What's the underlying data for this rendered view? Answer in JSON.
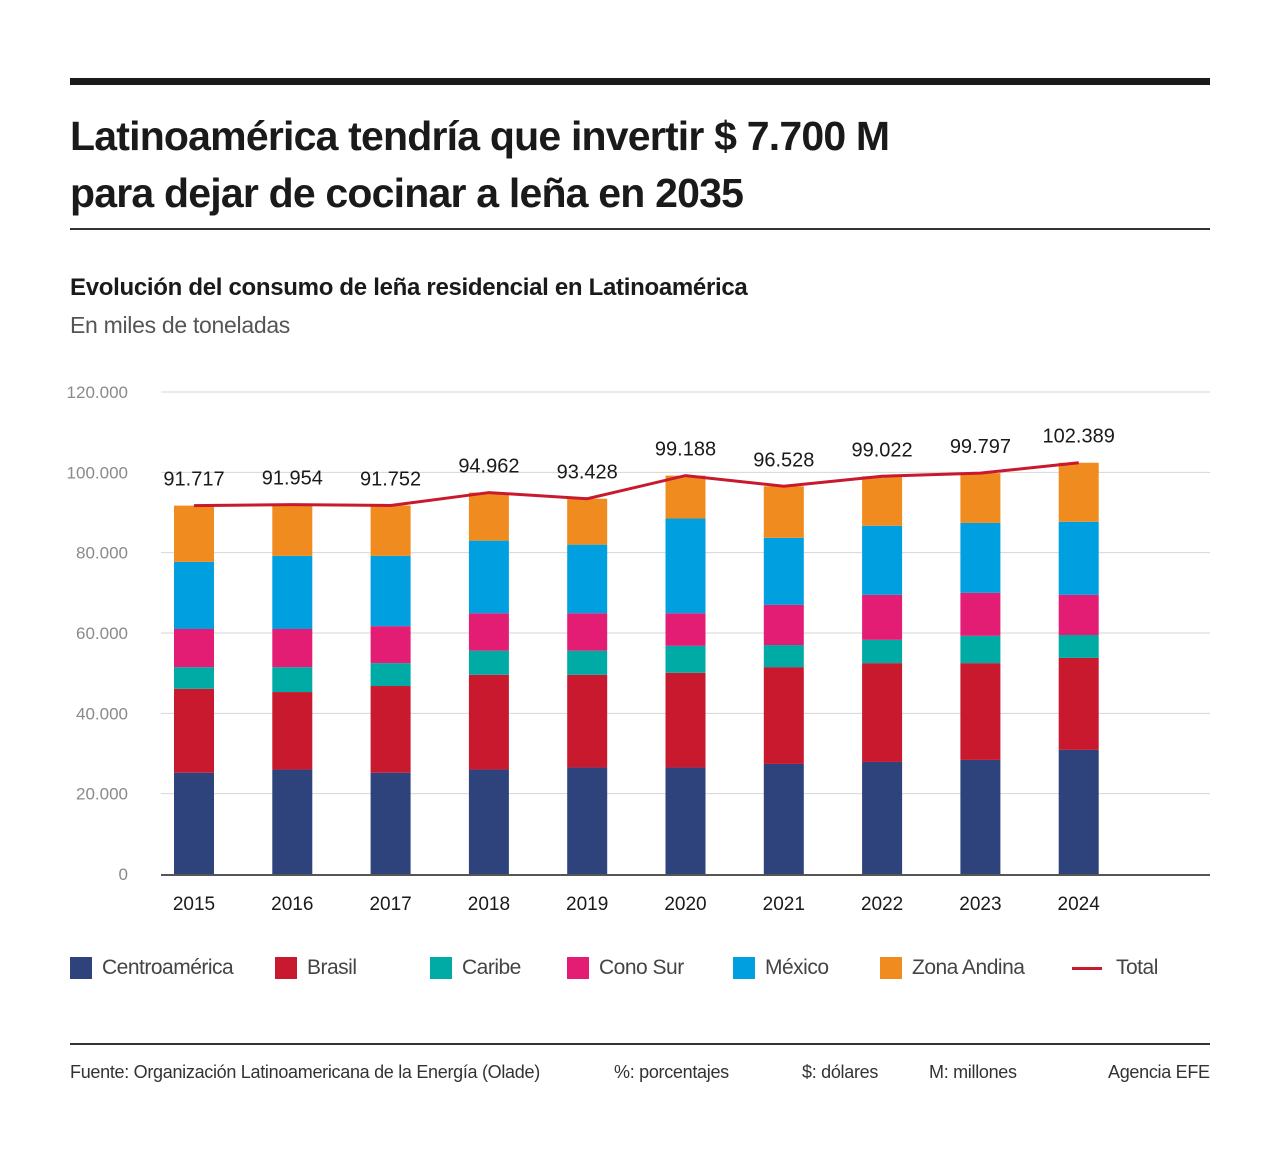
{
  "header": {
    "title_line1": "Latinoamérica tendría que invertir $ 7.700 M",
    "title_line2": "para dejar de cocinar a leña en 2035",
    "subtitle": "Evolución del consumo de leña residencial en Latinoamérica",
    "unit": "En miles de toneladas"
  },
  "chart_data": {
    "type": "bar",
    "stacked": true,
    "title": "Evolución del consumo de leña residencial en Latinoamérica",
    "subtitle": "En miles de toneladas",
    "xlabel": "",
    "ylabel": "",
    "ylim": [
      0,
      120000
    ],
    "yticks": [
      0,
      20000,
      40000,
      60000,
      80000,
      100000,
      120000
    ],
    "ytick_labels": [
      "0",
      "20.000",
      "40.000",
      "60.000",
      "80.000",
      "100.000",
      "120.000"
    ],
    "grid": true,
    "legend_position": "bottom",
    "categories": [
      "2015",
      "2016",
      "2017",
      "2018",
      "2019",
      "2020",
      "2021",
      "2022",
      "2023",
      "2024"
    ],
    "series": [
      {
        "name": "Centroamérica",
        "color": "#2e427b",
        "values": [
          25200,
          26000,
          25200,
          26000,
          26500,
          26500,
          27400,
          27900,
          28400,
          30900
        ]
      },
      {
        "name": "Brasil",
        "color": "#c8192f",
        "values": [
          20900,
          19300,
          21600,
          23600,
          23100,
          23600,
          24100,
          24600,
          24100,
          22900
        ]
      },
      {
        "name": "Caribe",
        "color": "#00aba5",
        "values": [
          5400,
          6200,
          5700,
          6000,
          6000,
          6700,
          5500,
          5800,
          6800,
          5700
        ]
      },
      {
        "name": "Cono Sur",
        "color": "#e41d74",
        "values": [
          9500,
          9500,
          9200,
          9300,
          9300,
          8100,
          10000,
          11200,
          10700,
          10000
        ]
      },
      {
        "name": "México",
        "color": "#009fe0",
        "values": [
          16700,
          18200,
          17500,
          18100,
          17100,
          23600,
          16700,
          17200,
          17400,
          18200
        ]
      },
      {
        "name": "Zona Andina",
        "color": "#f08c1f",
        "values": [
          14017,
          12754,
          12552,
          11962,
          11428,
          10688,
          12828,
          12322,
          12397,
          14689
        ]
      }
    ],
    "line": {
      "name": "Total",
      "color": "#c8192f",
      "values": [
        91717,
        91954,
        91752,
        94962,
        93428,
        99188,
        96528,
        99022,
        99797,
        102389
      ],
      "labels": [
        "91.717",
        "91.954",
        "91.752",
        "94.962",
        "93.428",
        "99.188",
        "96.528",
        "99.022",
        "99.797",
        "102.389"
      ]
    }
  },
  "legend": {
    "items": [
      {
        "label": "Centroamérica",
        "color": "#2e427b",
        "kind": "box"
      },
      {
        "label": "Brasil",
        "color": "#c8192f",
        "kind": "box"
      },
      {
        "label": "Caribe",
        "color": "#00aba5",
        "kind": "box"
      },
      {
        "label": "Cono Sur",
        "color": "#e41d74",
        "kind": "box"
      },
      {
        "label": "México",
        "color": "#009fe0",
        "kind": "box"
      },
      {
        "label": "Zona Andina",
        "color": "#f08c1f",
        "kind": "box"
      },
      {
        "label": "Total",
        "color": "#c8192f",
        "kind": "line"
      }
    ]
  },
  "footer": {
    "source": "Fuente: Organización Latinoamericana de la Energía (Olade)",
    "note_percent": "%: porcentajes",
    "note_dollars": "$: dólares",
    "note_millions": "M: millones",
    "credit": "Agencia EFE"
  }
}
